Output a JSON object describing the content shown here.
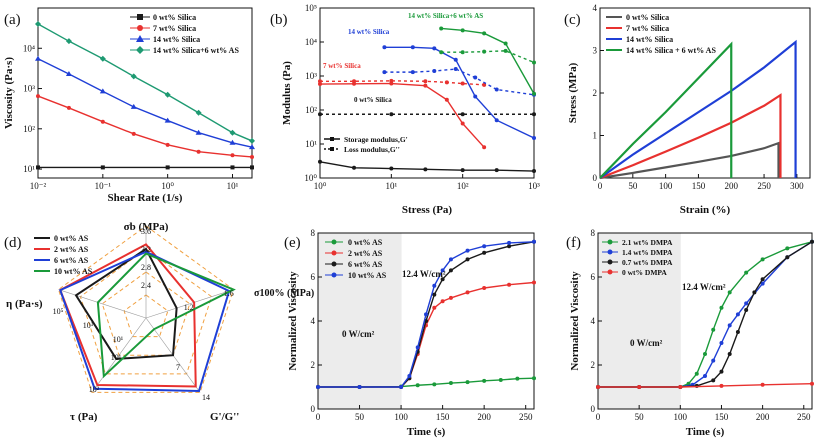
{
  "figure": {
    "panels": [
      {
        "id": "a",
        "label": "(a)"
      },
      {
        "id": "b",
        "label": "(b)"
      },
      {
        "id": "c",
        "label": "(c)"
      },
      {
        "id": "d",
        "label": "(d)"
      },
      {
        "id": "e",
        "label": "(e)"
      },
      {
        "id": "f",
        "label": "(f)"
      }
    ]
  },
  "colors": {
    "black": "#1a1a1a",
    "red": "#e8312f",
    "blue": "#1f3fd6",
    "green": "#1a9a3a",
    "teal": "#1e9a72",
    "gray": "#555555"
  },
  "chart_data": [
    {
      "id": "a",
      "type": "line",
      "xscale": "log",
      "yscale": "log",
      "xlabel": "Shear Rate (1/s)",
      "ylabel": "Viscosity (Pa·s)",
      "xlim": [
        0.01,
        20
      ],
      "ylim": [
        6,
        100000
      ],
      "xticks": [
        "10⁻²",
        "10⁻¹",
        "10⁰",
        "10¹"
      ],
      "yticks": [
        "10¹",
        "10²",
        "10³",
        "10⁴"
      ],
      "series": [
        {
          "name": "0 wt%  Silica",
          "color": "#1a1a1a",
          "marker": "square",
          "x": [
            0.01,
            0.1,
            1,
            10,
            20
          ],
          "y": [
            11,
            11,
            11,
            11,
            11
          ]
        },
        {
          "name": "7 wt%  Silica",
          "color": "#e8312f",
          "marker": "circle",
          "x": [
            0.01,
            0.03,
            0.1,
            0.3,
            1,
            3,
            10,
            20
          ],
          "y": [
            650,
            330,
            150,
            75,
            40,
            27,
            22,
            20
          ]
        },
        {
          "name": "14 wt%  Silica",
          "color": "#1f3fd6",
          "marker": "triangle",
          "x": [
            0.01,
            0.03,
            0.1,
            0.3,
            1,
            3,
            10,
            20
          ],
          "y": [
            5500,
            2300,
            850,
            350,
            160,
            80,
            45,
            35
          ]
        },
        {
          "name": "14 wt%  Silica+6 wt%  AS",
          "color": "#1e9a72",
          "marker": "diamond",
          "x": [
            0.01,
            0.03,
            0.1,
            0.3,
            1,
            3,
            10,
            20
          ],
          "y": [
            40000,
            15000,
            5500,
            2000,
            700,
            250,
            80,
            50
          ]
        }
      ]
    },
    {
      "id": "b",
      "type": "line",
      "xscale": "log",
      "yscale": "log",
      "xlabel": "Stress (Pa)",
      "ylabel": "Modulus (Pa)",
      "xlim": [
        1,
        1000
      ],
      "ylim": [
        1,
        100000
      ],
      "xticks": [
        "10⁰",
        "10¹",
        "10²",
        "10³"
      ],
      "yticks": [
        "10⁰",
        "10¹",
        "10²",
        "10³",
        "10⁴",
        "10⁵"
      ],
      "annotations": [
        "14 wt% Silica+6 wt% AS",
        "14 wt% Silica",
        "7 wt% Silica",
        "0 wt% Silica"
      ],
      "legend": [
        {
          "name": "Storage modulus,G'",
          "style": "solid"
        },
        {
          "name": "Loss modulus,G''",
          "style": "dotted"
        }
      ],
      "series": [
        {
          "name": "0 wt% Silica",
          "color": "#1a1a1a",
          "style": "solid",
          "x": [
            1,
            3,
            10,
            30,
            100,
            300,
            1000
          ],
          "y": [
            3,
            2,
            1.9,
            1.8,
            1.7,
            1.7,
            1.6
          ]
        },
        {
          "name": "0 wt% Silica",
          "color": "#1a1a1a",
          "style": "dotted",
          "x": [
            1,
            10,
            100,
            1000
          ],
          "y": [
            75,
            75,
            75,
            75
          ]
        },
        {
          "name": "7 wt% Silica",
          "color": "#e8312f",
          "style": "solid",
          "x": [
            1,
            3,
            10,
            30,
            60,
            100,
            200
          ],
          "y": [
            580,
            590,
            600,
            520,
            200,
            40,
            8
          ]
        },
        {
          "name": "7 wt% Silica",
          "color": "#e8312f",
          "style": "dotted",
          "x": [
            1,
            3,
            10,
            30,
            60,
            100,
            200
          ],
          "y": [
            700,
            700,
            720,
            700,
            650,
            600,
            550
          ]
        },
        {
          "name": "14 wt% Silica",
          "color": "#1f3fd6",
          "style": "solid",
          "x": [
            8,
            20,
            40,
            80,
            150,
            300,
            1000
          ],
          "y": [
            7000,
            7000,
            6500,
            3000,
            250,
            50,
            15
          ]
        },
        {
          "name": "14 wt% Silica",
          "color": "#1f3fd6",
          "style": "dotted",
          "x": [
            8,
            20,
            40,
            80,
            150,
            300,
            1000
          ],
          "y": [
            1300,
            1300,
            1400,
            1600,
            900,
            400,
            280
          ]
        },
        {
          "name": "14 wt% Silica+6 wt% AS",
          "color": "#1a9a3a",
          "style": "solid",
          "x": [
            50,
            100,
            200,
            400,
            1000
          ],
          "y": [
            25000,
            22000,
            18000,
            9000,
            300
          ]
        },
        {
          "name": "14 wt% Silica+6 wt% AS",
          "color": "#1a9a3a",
          "style": "dotted",
          "x": [
            50,
            100,
            200,
            400,
            1000
          ],
          "y": [
            5000,
            5000,
            5200,
            5500,
            2500
          ]
        }
      ]
    },
    {
      "id": "c",
      "type": "line",
      "xlabel": "Strain (%)",
      "ylabel": "Stress (MPa)",
      "xlim": [
        0,
        320
      ],
      "ylim": [
        0,
        4
      ],
      "xticks": [
        "0",
        "50",
        "100",
        "150",
        "200",
        "250",
        "300"
      ],
      "yticks": [
        "0",
        "1",
        "2",
        "3",
        "4"
      ],
      "series": [
        {
          "name": "0 wt%  Silica",
          "color": "#555555",
          "x": [
            0,
            50,
            100,
            150,
            200,
            250,
            272,
            272
          ],
          "y": [
            0,
            0.12,
            0.25,
            0.38,
            0.52,
            0.7,
            0.82,
            0
          ]
        },
        {
          "name": "7 wt%  Silica",
          "color": "#e8312f",
          "x": [
            0,
            50,
            100,
            150,
            200,
            250,
            275,
            275
          ],
          "y": [
            0,
            0.3,
            0.62,
            0.95,
            1.3,
            1.7,
            1.95,
            0
          ]
        },
        {
          "name": "14 wt%  Silica",
          "color": "#1f3fd6",
          "x": [
            0,
            50,
            100,
            150,
            200,
            250,
            298,
            298
          ],
          "y": [
            0,
            0.55,
            1.05,
            1.55,
            2.05,
            2.6,
            3.2,
            0
          ]
        },
        {
          "name": "14 wt%  Silica + 6 wt%  AS",
          "color": "#1a9a3a",
          "x": [
            0,
            50,
            100,
            150,
            200,
            200
          ],
          "y": [
            0,
            0.8,
            1.55,
            2.35,
            3.15,
            0
          ]
        }
      ]
    },
    {
      "id": "d",
      "type": "radar",
      "axes": [
        "σb (MPa)",
        "σ100% (MPa)",
        "G'/G''",
        "τ (Pa)",
        "η (Pa·s)"
      ],
      "axis_ticks": {
        "sigma_b": [
          "3.6",
          "3.2",
          "2.8",
          "2.4"
        ],
        "sigma100": [
          "1.6",
          "1.2"
        ],
        "gg": [
          "14",
          "7"
        ],
        "tau": [
          "10²",
          "10¹"
        ],
        "eta": [
          "10⁵",
          "10³",
          "10¹"
        ]
      },
      "series": [
        {
          "name": "0 wt%  AS",
          "color": "#1a1a1a",
          "values": [
            0.75,
            0.35,
            0.5,
            0.55,
            0.8
          ]
        },
        {
          "name": "2 wt%  AS",
          "color": "#e8312f",
          "values": [
            0.8,
            0.55,
            0.92,
            0.9,
            0.98
          ]
        },
        {
          "name": "6 wt%  AS",
          "color": "#1f3fd6",
          "values": [
            0.72,
            0.95,
            0.98,
            0.95,
            0.98
          ]
        },
        {
          "name": "10 wt%  AS",
          "color": "#1a9a3a",
          "values": [
            0.7,
            1.0,
            0.15,
            0.78,
            0.55
          ]
        }
      ]
    },
    {
      "id": "e",
      "type": "line",
      "xlabel": "Time (s)",
      "ylabel": "Normalized Viscosity",
      "xlim": [
        0,
        260
      ],
      "ylim": [
        0,
        8
      ],
      "xticks": [
        "0",
        "50",
        "100",
        "150",
        "200",
        "250"
      ],
      "yticks": [
        "0",
        "2",
        "4",
        "6",
        "8"
      ],
      "annotations": [
        "12.4 W/cm²",
        "0 W/cm²"
      ],
      "series": [
        {
          "name": "0 wt%  AS",
          "color": "#1a9a3a",
          "x": [
            0,
            50,
            100,
            120,
            140,
            160,
            180,
            200,
            220,
            240,
            260
          ],
          "y": [
            1,
            1,
            1.02,
            1.08,
            1.12,
            1.18,
            1.22,
            1.28,
            1.32,
            1.38,
            1.4
          ]
        },
        {
          "name": "2 wt%  AS",
          "color": "#e8312f",
          "x": [
            0,
            50,
            100,
            110,
            120,
            130,
            140,
            150,
            160,
            180,
            200,
            230,
            260
          ],
          "y": [
            1,
            1,
            1,
            1.4,
            2.5,
            3.8,
            4.6,
            4.9,
            5.05,
            5.3,
            5.5,
            5.65,
            5.75
          ]
        },
        {
          "name": "6 wt%  AS",
          "color": "#1a1a1a",
          "x": [
            0,
            50,
            100,
            110,
            120,
            130,
            140,
            150,
            160,
            180,
            200,
            230,
            260
          ],
          "y": [
            1,
            1,
            1,
            1.4,
            2.6,
            4.0,
            5.2,
            5.9,
            6.3,
            6.8,
            7.1,
            7.4,
            7.6
          ]
        },
        {
          "name": "10 wt%  AS",
          "color": "#1f3fd6",
          "x": [
            0,
            50,
            100,
            110,
            120,
            130,
            140,
            150,
            160,
            180,
            200,
            230,
            260
          ],
          "y": [
            1,
            1,
            1,
            1.5,
            2.8,
            4.3,
            5.6,
            6.3,
            6.8,
            7.2,
            7.4,
            7.55,
            7.6
          ]
        }
      ]
    },
    {
      "id": "f",
      "type": "line",
      "xlabel": "Time (s)",
      "ylabel": "Normalized Viscosity",
      "xlim": [
        0,
        260
      ],
      "ylim": [
        0,
        8
      ],
      "xticks": [
        "0",
        "50",
        "100",
        "150",
        "200",
        "250"
      ],
      "yticks": [
        "0",
        "2",
        "4",
        "6",
        "8"
      ],
      "annotations": [
        "12.4 W/cm²",
        "0 W/cm²"
      ],
      "series": [
        {
          "name": "2.1 wt%  DMPA",
          "color": "#1a9a3a",
          "x": [
            0,
            50,
            100,
            110,
            120,
            130,
            140,
            150,
            160,
            180,
            200,
            230,
            260
          ],
          "y": [
            1,
            1,
            1,
            1.15,
            1.6,
            2.5,
            3.6,
            4.6,
            5.3,
            6.2,
            6.8,
            7.3,
            7.6
          ]
        },
        {
          "name": "1.4 wt%  DMPA",
          "color": "#1f3fd6",
          "x": [
            0,
            50,
            100,
            115,
            130,
            140,
            150,
            160,
            170,
            180,
            200,
            230,
            260
          ],
          "y": [
            1,
            1,
            1,
            1.1,
            1.5,
            2.2,
            3.0,
            3.8,
            4.3,
            4.8,
            5.7,
            6.9,
            7.6
          ]
        },
        {
          "name": "0.7 wt%  DMPA",
          "color": "#1a1a1a",
          "x": [
            0,
            50,
            100,
            120,
            140,
            150,
            160,
            170,
            180,
            190,
            200,
            230,
            260
          ],
          "y": [
            1,
            1,
            1,
            1.05,
            1.3,
            1.7,
            2.5,
            3.5,
            4.5,
            5.3,
            5.9,
            6.9,
            7.6
          ]
        },
        {
          "name": "0 wt%  DMPA",
          "color": "#e8312f",
          "x": [
            0,
            50,
            100,
            150,
            200,
            260
          ],
          "y": [
            1,
            1,
            1,
            1.05,
            1.1,
            1.15
          ]
        }
      ]
    }
  ]
}
